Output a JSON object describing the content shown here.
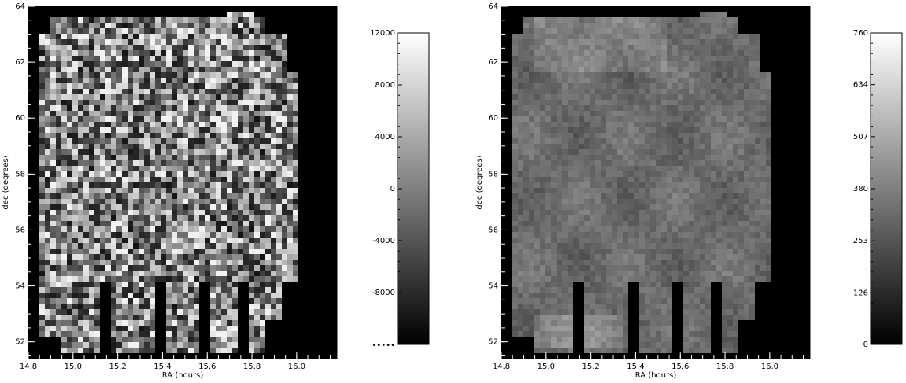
{
  "chart_data": [
    {
      "type": "heatmap",
      "xlabel": "RA (hours)",
      "ylabel": "dec (degrees)",
      "x_ticks": [
        14.8,
        15.0,
        15.2,
        15.4,
        15.6,
        15.8,
        16.0
      ],
      "x_tick_labels": [
        "14.8",
        "15.0",
        "15.2",
        "15.4",
        "15.6",
        "15.8",
        "16.0"
      ],
      "y_ticks": [
        52,
        54,
        56,
        58,
        60,
        62,
        64
      ],
      "y_tick_labels": [
        "52",
        "54",
        "56",
        "58",
        "60",
        "62",
        "64"
      ],
      "xlim": [
        14.8,
        16.18
      ],
      "ylim": [
        51.4,
        64.0
      ],
      "grid": false,
      "colormap": "grayscale",
      "map_style": "noisy",
      "colorbar": {
        "range": [
          -12000,
          12000
        ],
        "ticks": [
          -8000,
          -4000,
          0,
          4000,
          8000,
          12000
        ],
        "tick_labels": [
          "-8000",
          "-4000",
          "0",
          "4000",
          "8000",
          "12000"
        ],
        "bottom_label": "•••••"
      }
    },
    {
      "type": "heatmap",
      "xlabel": "RA (hours)",
      "ylabel": "dec (degrees)",
      "x_ticks": [
        14.8,
        15.0,
        15.2,
        15.4,
        15.6,
        15.8,
        16.0
      ],
      "x_tick_labels": [
        "14.8",
        "15.0",
        "15.2",
        "15.4",
        "15.6",
        "15.8",
        "16.0"
      ],
      "y_ticks": [
        52,
        54,
        56,
        58,
        60,
        62,
        64
      ],
      "y_tick_labels": [
        "52",
        "54",
        "56",
        "58",
        "60",
        "62",
        "64"
      ],
      "xlim": [
        14.8,
        16.18
      ],
      "ylim": [
        51.4,
        64.0
      ],
      "grid": false,
      "colormap": "grayscale",
      "map_style": "smooth",
      "colorbar": {
        "range": [
          0,
          760
        ],
        "ticks": [
          0,
          126,
          253,
          380,
          507,
          634,
          760
        ],
        "tick_labels": [
          "0",
          "126",
          "253",
          "380",
          "507",
          "634",
          "760"
        ]
      }
    }
  ]
}
